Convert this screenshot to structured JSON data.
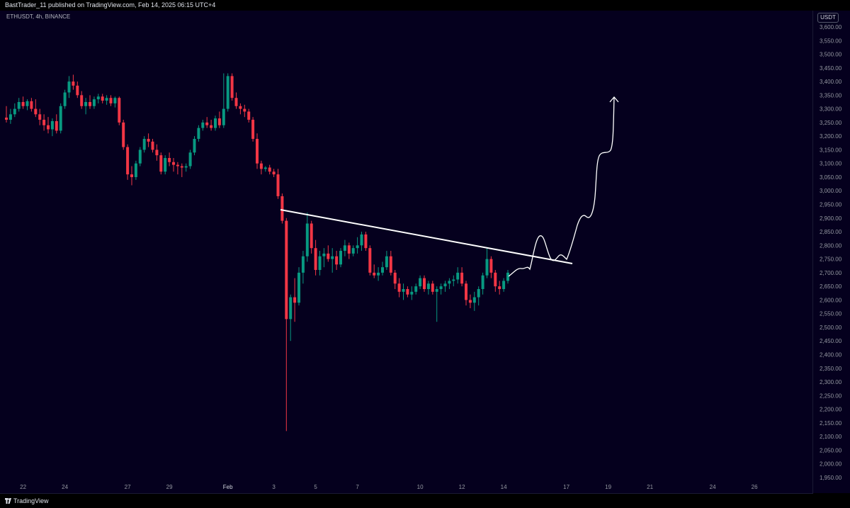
{
  "header": {
    "published_text": "BastTrader_11 published on TradingView.com, Feb 14, 2025 06:15 UTC+4"
  },
  "symbol_label": "ETHUSDT, 4h, BINANCE",
  "currency": "USDT",
  "footer": {
    "brand": "TradingView"
  },
  "colors": {
    "background": "#05001e",
    "up": "#089981",
    "down": "#f23645",
    "drawing": "#ffffff",
    "axis_text": "#9598a1"
  },
  "chart_data": {
    "type": "candlestick",
    "symbol": "ETHUSDT",
    "interval": "4h",
    "exchange": "BINANCE",
    "y_ticks": [
      3600,
      3550,
      3500,
      3450,
      3400,
      3350,
      3300,
      3250,
      3200,
      3150,
      3100,
      3050,
      3000,
      2950,
      2900,
      2850,
      2800,
      2750,
      2700,
      2650,
      2600,
      2550,
      2500,
      2450,
      2400,
      2350,
      2300,
      2250,
      2200,
      2150,
      2100,
      2050,
      2000,
      1950
    ],
    "y_tick_labels": [
      "3,600.00",
      "3,550.00",
      "3,500.00",
      "3,450.00",
      "3,400.00",
      "3,350.00",
      "3,300.00",
      "3,250.00",
      "3,200.00",
      "3,150.00",
      "3,100.00",
      "3,050.00",
      "3,000.00",
      "2,950.00",
      "2,900.00",
      "2,850.00",
      "2,800.00",
      "2,750.00",
      "2,700.00",
      "2,650.00",
      "2,600.00",
      "2,550.00",
      "2,500.00",
      "2,450.00",
      "2,400.00",
      "2,350.00",
      "2,300.00",
      "2,250.00",
      "2,200.00",
      "2,150.00",
      "2,100.00",
      "2,050.00",
      "2,000.00",
      "1,950.00"
    ],
    "x_tick_labels": [
      "22",
      "24",
      "27",
      "29",
      "Feb",
      "3",
      "5",
      "7",
      "10",
      "12",
      "14",
      "17",
      "19",
      "21",
      "24",
      "26"
    ],
    "x_tick_bar_index": [
      4,
      14,
      29,
      39,
      53,
      64,
      74,
      84,
      99,
      109,
      119,
      134,
      144,
      154,
      169,
      179
    ],
    "ohlc_bars": [
      {
        "o": 3268,
        "h": 3310,
        "l": 3250,
        "c": 3260
      },
      {
        "o": 3260,
        "h": 3300,
        "l": 3245,
        "c": 3280
      },
      {
        "o": 3280,
        "h": 3320,
        "l": 3270,
        "c": 3300
      },
      {
        "o": 3300,
        "h": 3340,
        "l": 3290,
        "c": 3325
      },
      {
        "o": 3325,
        "h": 3345,
        "l": 3300,
        "c": 3310
      },
      {
        "o": 3310,
        "h": 3335,
        "l": 3295,
        "c": 3328
      },
      {
        "o": 3328,
        "h": 3340,
        "l": 3290,
        "c": 3300
      },
      {
        "o": 3300,
        "h": 3335,
        "l": 3270,
        "c": 3280
      },
      {
        "o": 3280,
        "h": 3300,
        "l": 3240,
        "c": 3260
      },
      {
        "o": 3260,
        "h": 3280,
        "l": 3220,
        "c": 3240
      },
      {
        "o": 3240,
        "h": 3270,
        "l": 3210,
        "c": 3225
      },
      {
        "o": 3225,
        "h": 3265,
        "l": 3200,
        "c": 3255
      },
      {
        "o": 3255,
        "h": 3280,
        "l": 3210,
        "c": 3220
      },
      {
        "o": 3220,
        "h": 3320,
        "l": 3210,
        "c": 3310
      },
      {
        "o": 3310,
        "h": 3370,
        "l": 3300,
        "c": 3360
      },
      {
        "o": 3360,
        "h": 3420,
        "l": 3340,
        "c": 3400
      },
      {
        "o": 3400,
        "h": 3425,
        "l": 3370,
        "c": 3385
      },
      {
        "o": 3385,
        "h": 3400,
        "l": 3340,
        "c": 3350
      },
      {
        "o": 3350,
        "h": 3365,
        "l": 3300,
        "c": 3310
      },
      {
        "o": 3310,
        "h": 3340,
        "l": 3280,
        "c": 3325
      },
      {
        "o": 3325,
        "h": 3350,
        "l": 3300,
        "c": 3310
      },
      {
        "o": 3310,
        "h": 3345,
        "l": 3300,
        "c": 3335
      },
      {
        "o": 3335,
        "h": 3355,
        "l": 3320,
        "c": 3345
      },
      {
        "o": 3345,
        "h": 3355,
        "l": 3320,
        "c": 3330
      },
      {
        "o": 3330,
        "h": 3350,
        "l": 3315,
        "c": 3340
      },
      {
        "o": 3340,
        "h": 3350,
        "l": 3310,
        "c": 3320
      },
      {
        "o": 3320,
        "h": 3345,
        "l": 3305,
        "c": 3340
      },
      {
        "o": 3340,
        "h": 3345,
        "l": 3240,
        "c": 3250
      },
      {
        "o": 3250,
        "h": 3260,
        "l": 3150,
        "c": 3160
      },
      {
        "o": 3160,
        "h": 3170,
        "l": 3040,
        "c": 3060
      },
      {
        "o": 3060,
        "h": 3090,
        "l": 3020,
        "c": 3050
      },
      {
        "o": 3050,
        "h": 3110,
        "l": 3040,
        "c": 3100
      },
      {
        "o": 3100,
        "h": 3160,
        "l": 3090,
        "c": 3150
      },
      {
        "o": 3150,
        "h": 3200,
        "l": 3140,
        "c": 3190
      },
      {
        "o": 3190,
        "h": 3210,
        "l": 3160,
        "c": 3180
      },
      {
        "o": 3180,
        "h": 3190,
        "l": 3140,
        "c": 3150
      },
      {
        "o": 3150,
        "h": 3170,
        "l": 3110,
        "c": 3130
      },
      {
        "o": 3130,
        "h": 3140,
        "l": 3060,
        "c": 3070
      },
      {
        "o": 3070,
        "h": 3130,
        "l": 3060,
        "c": 3120
      },
      {
        "o": 3120,
        "h": 3140,
        "l": 3090,
        "c": 3105
      },
      {
        "o": 3105,
        "h": 3120,
        "l": 3070,
        "c": 3095
      },
      {
        "o": 3095,
        "h": 3105,
        "l": 3060,
        "c": 3090
      },
      {
        "o": 3090,
        "h": 3100,
        "l": 3050,
        "c": 3085
      },
      {
        "o": 3085,
        "h": 3100,
        "l": 3070,
        "c": 3090
      },
      {
        "o": 3090,
        "h": 3150,
        "l": 3080,
        "c": 3140
      },
      {
        "o": 3140,
        "h": 3200,
        "l": 3130,
        "c": 3190
      },
      {
        "o": 3190,
        "h": 3240,
        "l": 3180,
        "c": 3230
      },
      {
        "o": 3230,
        "h": 3260,
        "l": 3220,
        "c": 3250
      },
      {
        "o": 3250,
        "h": 3270,
        "l": 3230,
        "c": 3240
      },
      {
        "o": 3240,
        "h": 3260,
        "l": 3220,
        "c": 3230
      },
      {
        "o": 3230,
        "h": 3275,
        "l": 3220,
        "c": 3265
      },
      {
        "o": 3265,
        "h": 3290,
        "l": 3230,
        "c": 3240
      },
      {
        "o": 3240,
        "h": 3430,
        "l": 3230,
        "c": 3300
      },
      {
        "o": 3300,
        "h": 3430,
        "l": 3290,
        "c": 3420
      },
      {
        "o": 3420,
        "h": 3430,
        "l": 3330,
        "c": 3340
      },
      {
        "o": 3340,
        "h": 3360,
        "l": 3300,
        "c": 3310
      },
      {
        "o": 3310,
        "h": 3320,
        "l": 3280,
        "c": 3300
      },
      {
        "o": 3300,
        "h": 3315,
        "l": 3270,
        "c": 3290
      },
      {
        "o": 3290,
        "h": 3300,
        "l": 3250,
        "c": 3260
      },
      {
        "o": 3260,
        "h": 3270,
        "l": 3180,
        "c": 3190
      },
      {
        "o": 3190,
        "h": 3210,
        "l": 3080,
        "c": 3100
      },
      {
        "o": 3100,
        "h": 3110,
        "l": 3060,
        "c": 3080
      },
      {
        "o": 3080,
        "h": 3090,
        "l": 3070,
        "c": 3085
      },
      {
        "o": 3085,
        "h": 3095,
        "l": 3060,
        "c": 3070
      },
      {
        "o": 3070,
        "h": 3080,
        "l": 3050,
        "c": 3060
      },
      {
        "o": 3060,
        "h": 3080,
        "l": 2970,
        "c": 2980
      },
      {
        "o": 2980,
        "h": 2990,
        "l": 2880,
        "c": 2890
      },
      {
        "o": 2890,
        "h": 2900,
        "l": 2120,
        "c": 2530
      },
      {
        "o": 2530,
        "h": 2620,
        "l": 2450,
        "c": 2610
      },
      {
        "o": 2610,
        "h": 2680,
        "l": 2520,
        "c": 2590
      },
      {
        "o": 2590,
        "h": 2720,
        "l": 2580,
        "c": 2700
      },
      {
        "o": 2700,
        "h": 2780,
        "l": 2660,
        "c": 2760
      },
      {
        "o": 2760,
        "h": 2920,
        "l": 2740,
        "c": 2880
      },
      {
        "o": 2880,
        "h": 2890,
        "l": 2770,
        "c": 2790
      },
      {
        "o": 2790,
        "h": 2820,
        "l": 2690,
        "c": 2710
      },
      {
        "o": 2710,
        "h": 2780,
        "l": 2690,
        "c": 2760
      },
      {
        "o": 2760,
        "h": 2790,
        "l": 2720,
        "c": 2770
      },
      {
        "o": 2770,
        "h": 2800,
        "l": 2740,
        "c": 2750
      },
      {
        "o": 2750,
        "h": 2790,
        "l": 2700,
        "c": 2760
      },
      {
        "o": 2760,
        "h": 2780,
        "l": 2710,
        "c": 2730
      },
      {
        "o": 2730,
        "h": 2790,
        "l": 2720,
        "c": 2780
      },
      {
        "o": 2780,
        "h": 2820,
        "l": 2760,
        "c": 2800
      },
      {
        "o": 2800,
        "h": 2810,
        "l": 2750,
        "c": 2770
      },
      {
        "o": 2770,
        "h": 2800,
        "l": 2760,
        "c": 2790
      },
      {
        "o": 2790,
        "h": 2830,
        "l": 2770,
        "c": 2800
      },
      {
        "o": 2800,
        "h": 2850,
        "l": 2780,
        "c": 2840
      },
      {
        "o": 2840,
        "h": 2850,
        "l": 2780,
        "c": 2790
      },
      {
        "o": 2790,
        "h": 2800,
        "l": 2690,
        "c": 2700
      },
      {
        "o": 2700,
        "h": 2730,
        "l": 2680,
        "c": 2690
      },
      {
        "o": 2690,
        "h": 2720,
        "l": 2670,
        "c": 2700
      },
      {
        "o": 2700,
        "h": 2740,
        "l": 2690,
        "c": 2720
      },
      {
        "o": 2720,
        "h": 2780,
        "l": 2710,
        "c": 2760
      },
      {
        "o": 2760,
        "h": 2780,
        "l": 2690,
        "c": 2700
      },
      {
        "o": 2700,
        "h": 2710,
        "l": 2640,
        "c": 2660
      },
      {
        "o": 2660,
        "h": 2680,
        "l": 2610,
        "c": 2630
      },
      {
        "o": 2630,
        "h": 2660,
        "l": 2600,
        "c": 2640
      },
      {
        "o": 2640,
        "h": 2650,
        "l": 2610,
        "c": 2620
      },
      {
        "o": 2620,
        "h": 2650,
        "l": 2600,
        "c": 2630
      },
      {
        "o": 2630,
        "h": 2660,
        "l": 2620,
        "c": 2650
      },
      {
        "o": 2650,
        "h": 2690,
        "l": 2640,
        "c": 2680
      },
      {
        "o": 2680,
        "h": 2690,
        "l": 2630,
        "c": 2640
      },
      {
        "o": 2640,
        "h": 2670,
        "l": 2620,
        "c": 2660
      },
      {
        "o": 2660,
        "h": 2670,
        "l": 2620,
        "c": 2630
      },
      {
        "o": 2630,
        "h": 2650,
        "l": 2520,
        "c": 2640
      },
      {
        "o": 2640,
        "h": 2660,
        "l": 2620,
        "c": 2650
      },
      {
        "o": 2650,
        "h": 2670,
        "l": 2630,
        "c": 2660
      },
      {
        "o": 2660,
        "h": 2680,
        "l": 2640,
        "c": 2670
      },
      {
        "o": 2670,
        "h": 2690,
        "l": 2650,
        "c": 2675
      },
      {
        "o": 2675,
        "h": 2720,
        "l": 2660,
        "c": 2700
      },
      {
        "o": 2700,
        "h": 2720,
        "l": 2650,
        "c": 2660
      },
      {
        "o": 2660,
        "h": 2670,
        "l": 2580,
        "c": 2600
      },
      {
        "o": 2600,
        "h": 2620,
        "l": 2570,
        "c": 2590
      },
      {
        "o": 2590,
        "h": 2630,
        "l": 2560,
        "c": 2610
      },
      {
        "o": 2610,
        "h": 2650,
        "l": 2580,
        "c": 2640
      },
      {
        "o": 2640,
        "h": 2700,
        "l": 2620,
        "c": 2690
      },
      {
        "o": 2690,
        "h": 2790,
        "l": 2680,
        "c": 2750
      },
      {
        "o": 2750,
        "h": 2760,
        "l": 2680,
        "c": 2700
      },
      {
        "o": 2700,
        "h": 2710,
        "l": 2630,
        "c": 2650
      },
      {
        "o": 2650,
        "h": 2670,
        "l": 2620,
        "c": 2640
      },
      {
        "o": 2640,
        "h": 2680,
        "l": 2630,
        "c": 2670
      },
      {
        "o": 2670,
        "h": 2710,
        "l": 2660,
        "c": 2700
      }
    ]
  }
}
